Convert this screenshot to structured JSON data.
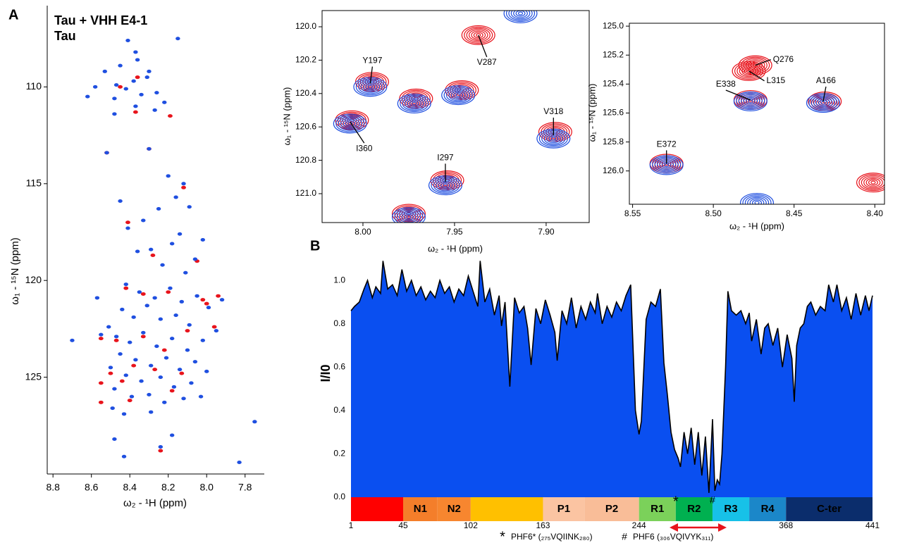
{
  "panels": [
    "A",
    "B"
  ],
  "chart_data": [
    {
      "type": "scatter",
      "xlabel": "ω₂ - ¹H  (ppm)",
      "ylabel": "ω₁ - ¹⁵N  (ppm)",
      "legend": "upper left",
      "xlim": [
        8.83,
        7.7
      ],
      "ylim": [
        130,
        105.8
      ],
      "xticks": [
        8.8,
        8.6,
        8.4,
        8.2,
        {
          "value": 8,
          "label": "8.0"
        },
        7.8
      ],
      "yticks": [
        110,
        115,
        120,
        125
      ],
      "series": [
        {
          "name": "Tau + VHH E4-1",
          "color": "#1f4fe0",
          "x": [
            8.41,
            8.37,
            8.36,
            8.45,
            8.3,
            8.31,
            8.53,
            8.38,
            8.47,
            8.42,
            8.58,
            8.62,
            8.34,
            8.26,
            8.22,
            8.48,
            8.37,
            8.27,
            8.15,
            8.3,
            8.52,
            8.48,
            8.12,
            8.16,
            8.25,
            8.33,
            8.09,
            8.41,
            8.14,
            8.18,
            8.29,
            8.06,
            8.36,
            8.23,
            8.11,
            8.45,
            8.02,
            8.2,
            8.42,
            8.35,
            8.27,
            8.19,
            8.13,
            8.05,
            7.99,
            8.44,
            8.38,
            8.31,
            8.24,
            8.16,
            8.09,
            8.51,
            8.55,
            8.47,
            8.4,
            8.33,
            8.26,
            8.18,
            8.1,
            8.02,
            7.95,
            8.45,
            8.37,
            8.29,
            8.21,
            8.14,
            8.06,
            8.5,
            8.42,
            8.34,
            8.24,
            8.17,
            8.08,
            8.0,
            8.48,
            8.39,
            8.3,
            8.22,
            8.12,
            8.03,
            8.7,
            7.92,
            8.57,
            8.49,
            8.43,
            8.29,
            8.18,
            8.43,
            7.75,
            7.83,
            8.48,
            8.24
          ],
          "values": [
            107.6,
            108.2,
            108.6,
            108.9,
            109.2,
            109.5,
            109.2,
            109.7,
            109.9,
            110.1,
            110.0,
            110.5,
            110.4,
            110.3,
            110.8,
            110.6,
            111.0,
            111.2,
            107.5,
            113.2,
            113.4,
            111.4,
            115.0,
            115.7,
            116.3,
            116.9,
            116.2,
            117.3,
            117.6,
            118.1,
            118.4,
            118.9,
            118.5,
            119.2,
            119.6,
            115.9,
            117.9,
            114.6,
            120.2,
            120.6,
            120.9,
            120.4,
            121.1,
            120.8,
            121.4,
            121.5,
            121.9,
            121.3,
            122.0,
            121.8,
            122.3,
            122.4,
            122.8,
            122.9,
            123.2,
            122.7,
            123.4,
            123.0,
            123.6,
            123.1,
            122.6,
            123.8,
            124.1,
            124.4,
            124.0,
            124.6,
            124.2,
            124.5,
            124.9,
            125.2,
            125.0,
            125.5,
            125.3,
            124.7,
            125.6,
            126.0,
            125.9,
            126.3,
            126.1,
            126.0,
            123.1,
            121.0,
            120.9,
            126.6,
            126.9,
            126.8,
            128.0,
            129.1,
            127.3,
            129.4,
            128.2,
            128.6
          ]
        },
        {
          "name": "Tau",
          "color": "#e8141c",
          "x": [
            8.36,
            8.45,
            8.52,
            8.3,
            8.19,
            8.37,
            8.12,
            8.41,
            8.28,
            8.05,
            8.42,
            8.2,
            8.0,
            8.1,
            8.33,
            8.47,
            8.55,
            8.22,
            7.96,
            8.38,
            8.27,
            8.13,
            8.5,
            8.44,
            8.55,
            8.18,
            8.02,
            8.4,
            8.55,
            8.24,
            7.94,
            8.33
          ],
          "values": [
            109.5,
            110.0,
            113.4,
            113.2,
            111.5,
            111.3,
            115.2,
            117.0,
            118.7,
            119.0,
            120.4,
            120.6,
            121.2,
            122.6,
            122.9,
            123.1,
            123.0,
            123.6,
            122.4,
            124.4,
            124.6,
            124.8,
            124.8,
            125.2,
            125.3,
            125.7,
            121.0,
            126.2,
            126.3,
            128.8,
            120.8,
            120.7
          ]
        }
      ]
    },
    {
      "type": "contour",
      "xlabel": "ω₂ - ¹H  (ppm)",
      "ylabel": "ω₁ - ¹⁵N  (ppm)",
      "xlim": [
        8.0223,
        7.8765
      ],
      "ylim": [
        121.173,
        119.903
      ],
      "xticks": [
        {
          "value": 8,
          "label": "8.00"
        },
        7.95,
        {
          "value": 7.9,
          "label": "7.90"
        }
      ],
      "yticks": [
        {
          "value": 120,
          "label": "120.0"
        },
        120.2,
        120.4,
        120.6,
        120.8,
        {
          "value": 121,
          "label": "121.0"
        }
      ],
      "series": [
        {
          "color": "#e8141c",
          "x": [
            7.995,
            8.006,
            7.971,
            7.946,
            7.895,
            7.954,
            7.975,
            7.937
          ],
          "values": [
            120.33,
            120.56,
            120.43,
            120.38,
            120.63,
            120.92,
            121.12,
            120.05
          ]
        },
        {
          "color": "#1f4fe0",
          "x": [
            7.996,
            8.007,
            7.972,
            7.948,
            7.896,
            7.955,
            7.975,
            7.914
          ],
          "values": [
            120.36,
            120.58,
            120.46,
            120.41,
            120.67,
            120.95,
            121.14,
            119.92
          ]
        }
      ],
      "annotations": [
        {
          "text": "Y197",
          "x": 7.996,
          "y": 120.34
        },
        {
          "text": "I360",
          "x": 8.007,
          "y": 120.57
        },
        {
          "text": "V287",
          "x": 7.937,
          "y": 120.05
        },
        {
          "text": "V318",
          "x": 7.896,
          "y": 120.65
        },
        {
          "text": "I297",
          "x": 7.955,
          "y": 120.93
        }
      ]
    },
    {
      "type": "contour",
      "xlabel": "ω₂ - ¹H  (ppm)",
      "ylabel": "ω₁ - ¹⁵N  (ppm)",
      "xlim": [
        8.552,
        8.394
      ],
      "ylim": [
        126.23,
        124.98
      ],
      "xticks": [
        8.55,
        {
          "value": 8.5,
          "label": "8.50"
        },
        8.45,
        {
          "value": 8.4,
          "label": "8.40"
        }
      ],
      "yticks": [
        {
          "value": 125,
          "label": "125.0"
        },
        125.2,
        125.4,
        125.6,
        125.8,
        {
          "value": 126,
          "label": "126.0"
        }
      ],
      "series": [
        {
          "color": "#e8141c",
          "x": [
            8.474,
            8.478,
            8.477,
            8.431,
            8.529,
            8.401
          ],
          "values": [
            125.27,
            125.31,
            125.51,
            125.52,
            125.95,
            126.08
          ]
        },
        {
          "color": "#1f4fe0",
          "x": [
            8.477,
            8.432,
            8.529,
            8.473
          ],
          "values": [
            125.52,
            125.53,
            125.96,
            126.22
          ]
        }
      ],
      "annotations": [
        {
          "text": "Q276",
          "x": 8.474,
          "y": 125.27
        },
        {
          "text": "L315",
          "x": 8.478,
          "y": 125.31
        },
        {
          "text": "E338",
          "x": 8.477,
          "y": 125.51
        },
        {
          "text": "A166",
          "x": 8.432,
          "y": 125.52
        },
        {
          "text": "E372",
          "x": 8.529,
          "y": 125.95
        }
      ]
    },
    {
      "type": "area",
      "ylabel": "I/I0",
      "color": "#0a4ff0",
      "xlim": [
        1,
        441
      ],
      "ylim": [
        0,
        1.14
      ],
      "xticks": [
        1,
        45,
        102,
        163,
        244,
        368,
        441
      ],
      "yticks": [
        {
          "value": 0,
          "label": "0.0"
        },
        0.2,
        0.4,
        0.6,
        0.8,
        {
          "value": 1,
          "label": "1.0"
        }
      ],
      "x": [
        1,
        4,
        8,
        12,
        15,
        19,
        22,
        26,
        28,
        32,
        36,
        40,
        44,
        48,
        52,
        56,
        60,
        64,
        68,
        72,
        76,
        80,
        84,
        88,
        92,
        96,
        100,
        104,
        108,
        110,
        114,
        118,
        122,
        126,
        128,
        131,
        135,
        139,
        143,
        147,
        150,
        153,
        157,
        161,
        165,
        169,
        173,
        175,
        179,
        183,
        187,
        191,
        195,
        199,
        203,
        207,
        209,
        213,
        217,
        221,
        225,
        229,
        233,
        237,
        241,
        244,
        246,
        250,
        254,
        258,
        262,
        265,
        268,
        271,
        274,
        277,
        279,
        282,
        285,
        288,
        291,
        294,
        297,
        300,
        303,
        306,
        308,
        310,
        312,
        314,
        317,
        319,
        322,
        326,
        330,
        334,
        337,
        339,
        343,
        347,
        350,
        353,
        357,
        361,
        365,
        369,
        373,
        375,
        377,
        380,
        383,
        386,
        389,
        393,
        397,
        401,
        404,
        408,
        411,
        415,
        419,
        423,
        427,
        431,
        435,
        438,
        441
      ],
      "values": [
        0.86,
        0.88,
        0.9,
        0.96,
        1.0,
        0.92,
        0.97,
        0.94,
        1.09,
        0.96,
        0.98,
        0.93,
        1.05,
        0.95,
        1.0,
        0.93,
        0.97,
        0.91,
        0.95,
        0.92,
        1.0,
        0.94,
        0.97,
        0.9,
        0.96,
        0.93,
        1.02,
        0.95,
        0.88,
        1.09,
        0.9,
        0.96,
        0.84,
        0.93,
        0.79,
        0.9,
        0.51,
        0.92,
        0.85,
        0.88,
        0.78,
        0.61,
        0.87,
        0.8,
        0.91,
        0.84,
        0.76,
        0.63,
        0.86,
        0.8,
        0.92,
        0.78,
        0.88,
        0.82,
        0.9,
        0.85,
        0.94,
        0.8,
        0.88,
        0.83,
        0.9,
        0.86,
        0.93,
        0.98,
        0.4,
        0.29,
        0.35,
        0.82,
        0.9,
        0.88,
        0.96,
        0.62,
        0.47,
        0.3,
        0.22,
        0.18,
        0.14,
        0.3,
        0.2,
        0.32,
        0.15,
        0.3,
        0.1,
        0.28,
        0.02,
        0.36,
        0.03,
        0.08,
        0.06,
        0.2,
        0.6,
        0.95,
        0.86,
        0.84,
        0.86,
        0.8,
        0.85,
        0.72,
        0.82,
        0.66,
        0.78,
        0.8,
        0.7,
        0.78,
        0.6,
        0.75,
        0.64,
        0.44,
        0.7,
        0.78,
        0.8,
        0.88,
        0.9,
        0.84,
        0.88,
        0.86,
        0.98,
        0.9,
        0.98,
        0.86,
        0.92,
        0.82,
        0.94,
        0.84,
        0.93,
        0.86,
        0.93
      ],
      "domains": [
        {
          "name": null,
          "start": 1,
          "end": 45,
          "color": "#ff0000"
        },
        {
          "name": "N1",
          "start": 45,
          "end": 74,
          "color": "#f47e2a"
        },
        {
          "name": "N2",
          "start": 74,
          "end": 102,
          "color": "#f7862f"
        },
        {
          "name": null,
          "start": 102,
          "end": 163,
          "color": "#ffc000"
        },
        {
          "name": "P1",
          "start": 163,
          "end": 198,
          "color": "#fbc4a2"
        },
        {
          "name": "P2",
          "start": 198,
          "end": 244,
          "color": "#f9bd98"
        },
        {
          "name": "R1",
          "start": 244,
          "end": 275,
          "color": "#7bd15a"
        },
        {
          "name": "R2",
          "start": 275,
          "end": 306,
          "color": "#00b050"
        },
        {
          "name": "R3",
          "start": 306,
          "end": 337,
          "color": "#17c1e8"
        },
        {
          "name": "R4",
          "start": 337,
          "end": 368,
          "color": "#1b87c9"
        },
        {
          "name": "C-ter",
          "start": 368,
          "end": 441,
          "color": "#0b2d6c"
        }
      ],
      "footnotes": [
        {
          "symbol": "*",
          "residue": 275,
          "text": "PHF6* (₂₇₅VQIINK₂₈₀)"
        },
        {
          "symbol": "#",
          "residue": 306,
          "text": "PHF6 (₃₀₆VQIVYK₃₁₁)"
        }
      ]
    }
  ]
}
